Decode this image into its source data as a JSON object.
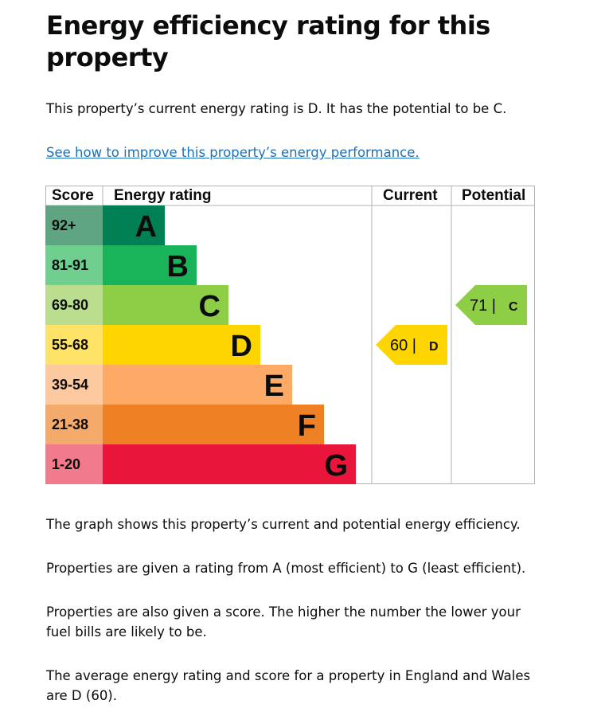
{
  "title": "Energy efficiency rating for this property",
  "intro": "This property’s current energy rating is D. It has the potential to be C.",
  "link": "See how to improve this property’s energy performance.",
  "table": {
    "headers": {
      "score": "Score",
      "rating": "Energy rating",
      "current": "Current",
      "potential": "Potential"
    },
    "bands": [
      {
        "score": "92+",
        "letter": "A",
        "color": "#008054",
        "light": "#5fa584"
      },
      {
        "score": "81-91",
        "letter": "B",
        "color": "#19b459",
        "light": "#6fcf8e"
      },
      {
        "score": "69-80",
        "letter": "C",
        "color": "#8dce46",
        "light": "#bade8e"
      },
      {
        "score": "55-68",
        "letter": "D",
        "color": "#ffd500",
        "light": "#ffe366"
      },
      {
        "score": "39-54",
        "letter": "E",
        "color": "#fcaa65",
        "light": "#fdcaa0"
      },
      {
        "score": "21-38",
        "letter": "F",
        "color": "#ef8023",
        "light": "#f4aa6b"
      },
      {
        "score": "1-20",
        "letter": "G",
        "color": "#e9153b",
        "light": "#f17a8c"
      }
    ],
    "current": {
      "score": "60",
      "letter": "D",
      "band_index": 3
    },
    "potential": {
      "score": "71",
      "letter": "C",
      "band_index": 2
    }
  },
  "paragraphs": [
    "The graph shows this property’s current and potential energy efficiency.",
    "Properties are given a rating from A (most efficient) to G (least efficient).",
    "Properties are also given a score. The higher the number the lower your fuel bills are likely to be.",
    "The average energy rating and score for a property in England and Wales are D (60)."
  ]
}
